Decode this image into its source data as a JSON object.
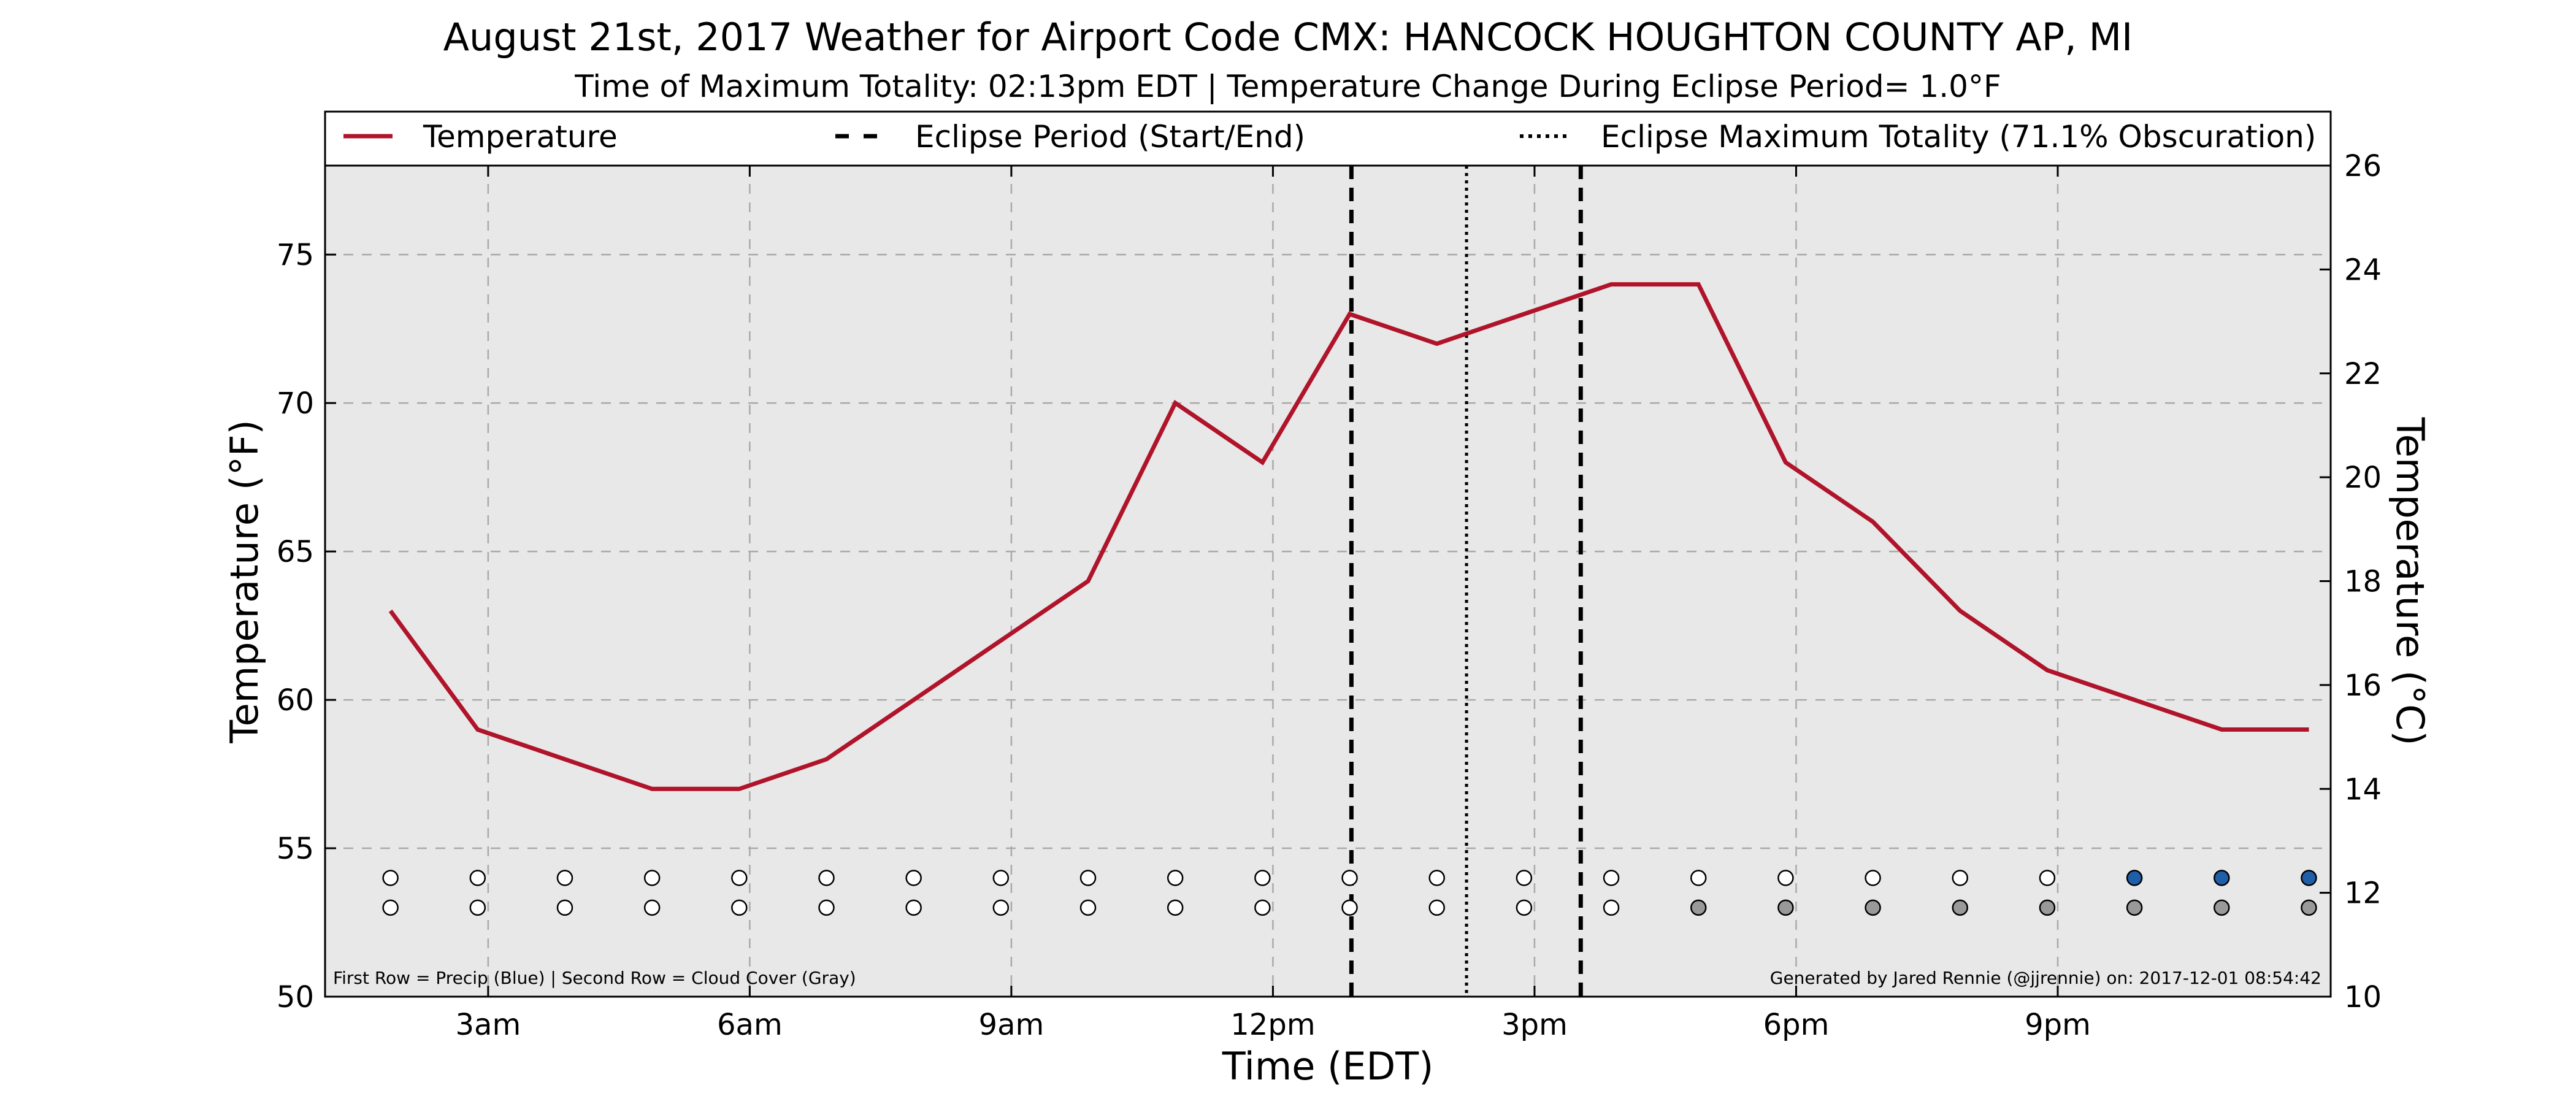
{
  "chart_data": {
    "type": "line",
    "title": "August 21st, 2017 Weather for Airport Code CMX: HANCOCK HOUGHTON COUNTY AP, MI",
    "subtitle": "Time of Maximum Totality: 02:13pm EDT | Temperature Change During Eclipse Period= 1.0°F",
    "xlabel": "Time (EDT)",
    "ylabel": "Temperature (°F)",
    "y2label": "Temperature (°C)",
    "xlim": [
      1.13,
      24.13
    ],
    "ylim": [
      50,
      78
    ],
    "y2lim": [
      10,
      26
    ],
    "x_ticks": [
      {
        "x": 3,
        "label": "3am"
      },
      {
        "x": 6,
        "label": "6am"
      },
      {
        "x": 9,
        "label": "9am"
      },
      {
        "x": 12,
        "label": "12pm"
      },
      {
        "x": 15,
        "label": "3pm"
      },
      {
        "x": 18,
        "label": "6pm"
      },
      {
        "x": 21,
        "label": "9pm"
      }
    ],
    "y_ticks": [
      50,
      55,
      60,
      65,
      70,
      75
    ],
    "y2_ticks": [
      10,
      12,
      14,
      16,
      18,
      20,
      22,
      24,
      26
    ],
    "grid": true,
    "series": [
      {
        "name": "Temperature",
        "color": "#b0142a",
        "points": [
          [
            1.88,
            63
          ],
          [
            2.88,
            59
          ],
          [
            3.88,
            58
          ],
          [
            4.88,
            57
          ],
          [
            5.88,
            57
          ],
          [
            6.88,
            58
          ],
          [
            7.88,
            60
          ],
          [
            8.88,
            62
          ],
          [
            9.88,
            64
          ],
          [
            10.88,
            70
          ],
          [
            11.88,
            68
          ],
          [
            12.88,
            73
          ],
          [
            13.88,
            72
          ],
          [
            14.88,
            73
          ],
          [
            15.88,
            74
          ],
          [
            16.88,
            74
          ],
          [
            17.88,
            68
          ],
          [
            18.88,
            66
          ],
          [
            19.88,
            63
          ],
          [
            20.88,
            61
          ],
          [
            21.88,
            60
          ],
          [
            22.88,
            59
          ],
          [
            23.88,
            59
          ]
        ]
      }
    ],
    "eclipse_start": 12.9,
    "eclipse_end": 15.53,
    "eclipse_max": 14.22,
    "legend": {
      "placement": "top",
      "entries": [
        {
          "label": "Temperature",
          "style": "solid",
          "color": "#b0142a"
        },
        {
          "label": "Eclipse Period (Start/End)",
          "style": "dashed",
          "color": "#000000"
        },
        {
          "label": "Eclipse Maximum Totality (71.1% Obscuration)",
          "style": "dotted",
          "color": "#000000"
        }
      ]
    },
    "indicator_rows": {
      "times": [
        1.88,
        2.88,
        3.88,
        4.88,
        5.88,
        6.88,
        7.88,
        8.88,
        9.88,
        10.88,
        11.88,
        12.88,
        13.88,
        14.88,
        15.88,
        16.88,
        17.88,
        18.88,
        19.88,
        20.88,
        21.88,
        22.88,
        23.88
      ],
      "precip_row_y": 54,
      "cloud_row_y": 53,
      "precip": [
        0,
        0,
        0,
        0,
        0,
        0,
        0,
        0,
        0,
        0,
        0,
        0,
        0,
        0,
        0,
        0,
        0,
        0,
        0,
        0,
        1,
        1,
        1
      ],
      "cloud": [
        0,
        0,
        0,
        0,
        0,
        0,
        0,
        0,
        0,
        0,
        0,
        0,
        0,
        0,
        0,
        1,
        1,
        1,
        1,
        1,
        1,
        1,
        1
      ],
      "precip_color": "#1f5ea8",
      "cloud_color": "#999999",
      "empty_color": "#ffffff"
    },
    "footnote_left": "First Row = Precip (Blue) | Second Row = Cloud Cover (Gray)",
    "footnote_right": "Generated by Jared Rennie (@jjrennie) on: 2017-12-01 08:54:42"
  }
}
